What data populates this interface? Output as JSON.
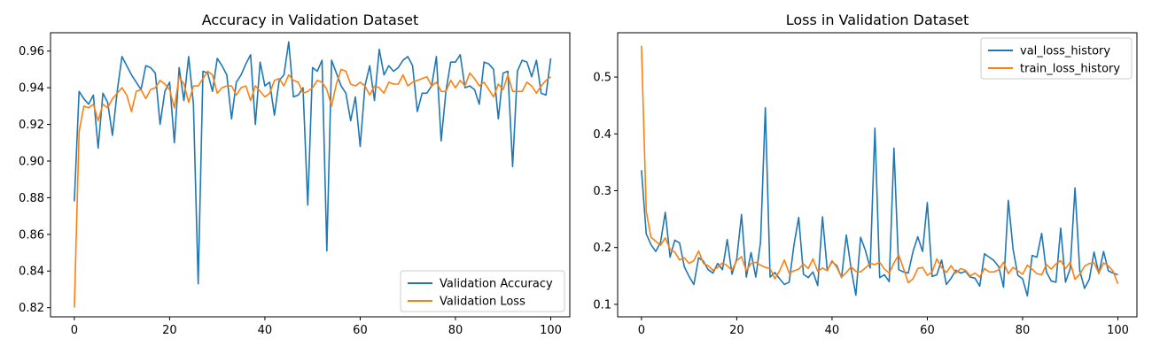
{
  "chart_data": [
    {
      "type": "line",
      "title": "Accuracy in Validation Dataset",
      "xlabel": "",
      "ylabel": "",
      "xlim": [
        -5,
        104
      ],
      "ylim": [
        0.815,
        0.97
      ],
      "xticks": [
        0,
        20,
        40,
        60,
        80,
        100
      ],
      "yticks": [
        0.82,
        0.84,
        0.86,
        0.88,
        0.9,
        0.92,
        0.94,
        0.96
      ],
      "ytick_format": 2,
      "grid": false,
      "legend": "lower-right",
      "series": [
        {
          "name": "Validation Accuracy",
          "color": "#1f77b4",
          "values": [
            0.878,
            0.938,
            0.934,
            0.931,
            0.936,
            0.907,
            0.937,
            0.932,
            0.914,
            0.938,
            0.957,
            0.952,
            0.947,
            0.943,
            0.939,
            0.952,
            0.951,
            0.948,
            0.92,
            0.938,
            0.943,
            0.91,
            0.951,
            0.933,
            0.957,
            0.931,
            0.833,
            0.949,
            0.948,
            0.938,
            0.956,
            0.952,
            0.947,
            0.923,
            0.943,
            0.947,
            0.953,
            0.958,
            0.92,
            0.954,
            0.941,
            0.943,
            0.925,
            0.944,
            0.947,
            0.965,
            0.935,
            0.936,
            0.94,
            0.876,
            0.951,
            0.949,
            0.955,
            0.851,
            0.955,
            0.948,
            0.941,
            0.937,
            0.922,
            0.935,
            0.908,
            0.941,
            0.952,
            0.933,
            0.961,
            0.947,
            0.952,
            0.949,
            0.951,
            0.955,
            0.957,
            0.952,
            0.927,
            0.937,
            0.937,
            0.941,
            0.957,
            0.911,
            0.938,
            0.954,
            0.954,
            0.958,
            0.94,
            0.941,
            0.939,
            0.931,
            0.954,
            0.953,
            0.95,
            0.923,
            0.948,
            0.949,
            0.897,
            0.949,
            0.955,
            0.954,
            0.946,
            0.955,
            0.937,
            0.936,
            0.956
          ]
        },
        {
          "name": "Validation Loss",
          "color": "#ff7f0e",
          "values": [
            0.82,
            0.916,
            0.93,
            0.929,
            0.931,
            0.922,
            0.931,
            0.929,
            0.934,
            0.937,
            0.94,
            0.936,
            0.927,
            0.938,
            0.939,
            0.934,
            0.939,
            0.94,
            0.944,
            0.942,
            0.939,
            0.929,
            0.946,
            0.942,
            0.932,
            0.941,
            0.941,
            0.945,
            0.949,
            0.947,
            0.937,
            0.94,
            0.941,
            0.941,
            0.936,
            0.94,
            0.941,
            0.933,
            0.941,
            0.938,
            0.935,
            0.937,
            0.944,
            0.945,
            0.941,
            0.947,
            0.944,
            0.943,
            0.937,
            0.938,
            0.94,
            0.944,
            0.943,
            0.939,
            0.93,
            0.942,
            0.95,
            0.949,
            0.942,
            0.941,
            0.943,
            0.941,
            0.936,
            0.941,
            0.94,
            0.937,
            0.943,
            0.942,
            0.942,
            0.947,
            0.941,
            0.943,
            0.944,
            0.945,
            0.946,
            0.941,
            0.943,
            0.938,
            0.938,
            0.944,
            0.94,
            0.944,
            0.941,
            0.948,
            0.945,
            0.941,
            0.943,
            0.939,
            0.935,
            0.942,
            0.939,
            0.947,
            0.938,
            0.938,
            0.938,
            0.943,
            0.941,
            0.937,
            0.941,
            0.944,
            0.946
          ]
        }
      ]
    },
    {
      "type": "line",
      "title": "Loss in Validation Dataset",
      "xlabel": "",
      "ylabel": "",
      "xlim": [
        -5,
        104
      ],
      "ylim": [
        0.078,
        0.578
      ],
      "xticks": [
        0,
        20,
        40,
        60,
        80,
        100
      ],
      "yticks": [
        0.1,
        0.2,
        0.3,
        0.4,
        0.5
      ],
      "ytick_format": 1,
      "grid": false,
      "legend": "upper-right",
      "series": [
        {
          "name": "val_loss_history",
          "color": "#1f77b4",
          "values": [
            0.336,
            0.224,
            0.205,
            0.193,
            0.209,
            0.262,
            0.183,
            0.213,
            0.208,
            0.166,
            0.149,
            0.135,
            0.182,
            0.176,
            0.161,
            0.155,
            0.172,
            0.161,
            0.214,
            0.153,
            0.18,
            0.258,
            0.148,
            0.191,
            0.148,
            0.21,
            0.446,
            0.148,
            0.156,
            0.145,
            0.135,
            0.139,
            0.204,
            0.253,
            0.153,
            0.147,
            0.157,
            0.133,
            0.254,
            0.16,
            0.175,
            0.168,
            0.147,
            0.222,
            0.163,
            0.116,
            0.218,
            0.195,
            0.164,
            0.41,
            0.147,
            0.152,
            0.14,
            0.375,
            0.161,
            0.157,
            0.155,
            0.193,
            0.219,
            0.193,
            0.279,
            0.149,
            0.152,
            0.178,
            0.135,
            0.146,
            0.16,
            0.155,
            0.158,
            0.148,
            0.146,
            0.132,
            0.189,
            0.183,
            0.177,
            0.166,
            0.13,
            0.283,
            0.197,
            0.151,
            0.145,
            0.115,
            0.186,
            0.183,
            0.225,
            0.157,
            0.141,
            0.139,
            0.234,
            0.139,
            0.163,
            0.305,
            0.159,
            0.128,
            0.144,
            0.192,
            0.154,
            0.193,
            0.159,
            0.155,
            0.152
          ]
        },
        {
          "name": "train_loss_history",
          "color": "#ff7f0e",
          "values": [
            0.555,
            0.264,
            0.218,
            0.211,
            0.204,
            0.217,
            0.197,
            0.192,
            0.178,
            0.182,
            0.172,
            0.177,
            0.194,
            0.172,
            0.168,
            0.16,
            0.165,
            0.173,
            0.168,
            0.16,
            0.177,
            0.184,
            0.159,
            0.172,
            0.174,
            0.169,
            0.165,
            0.163,
            0.145,
            0.159,
            0.178,
            0.155,
            0.159,
            0.162,
            0.171,
            0.163,
            0.18,
            0.158,
            0.164,
            0.159,
            0.177,
            0.165,
            0.148,
            0.156,
            0.166,
            0.158,
            0.157,
            0.164,
            0.172,
            0.17,
            0.174,
            0.162,
            0.155,
            0.173,
            0.187,
            0.163,
            0.138,
            0.145,
            0.163,
            0.165,
            0.151,
            0.157,
            0.18,
            0.165,
            0.156,
            0.168,
            0.155,
            0.163,
            0.16,
            0.15,
            0.155,
            0.148,
            0.163,
            0.157,
            0.157,
            0.161,
            0.174,
            0.154,
            0.165,
            0.159,
            0.153,
            0.169,
            0.162,
            0.154,
            0.152,
            0.17,
            0.162,
            0.171,
            0.177,
            0.163,
            0.174,
            0.144,
            0.153,
            0.167,
            0.172,
            0.173,
            0.155,
            0.173,
            0.168,
            0.158,
            0.136
          ]
        }
      ]
    }
  ]
}
